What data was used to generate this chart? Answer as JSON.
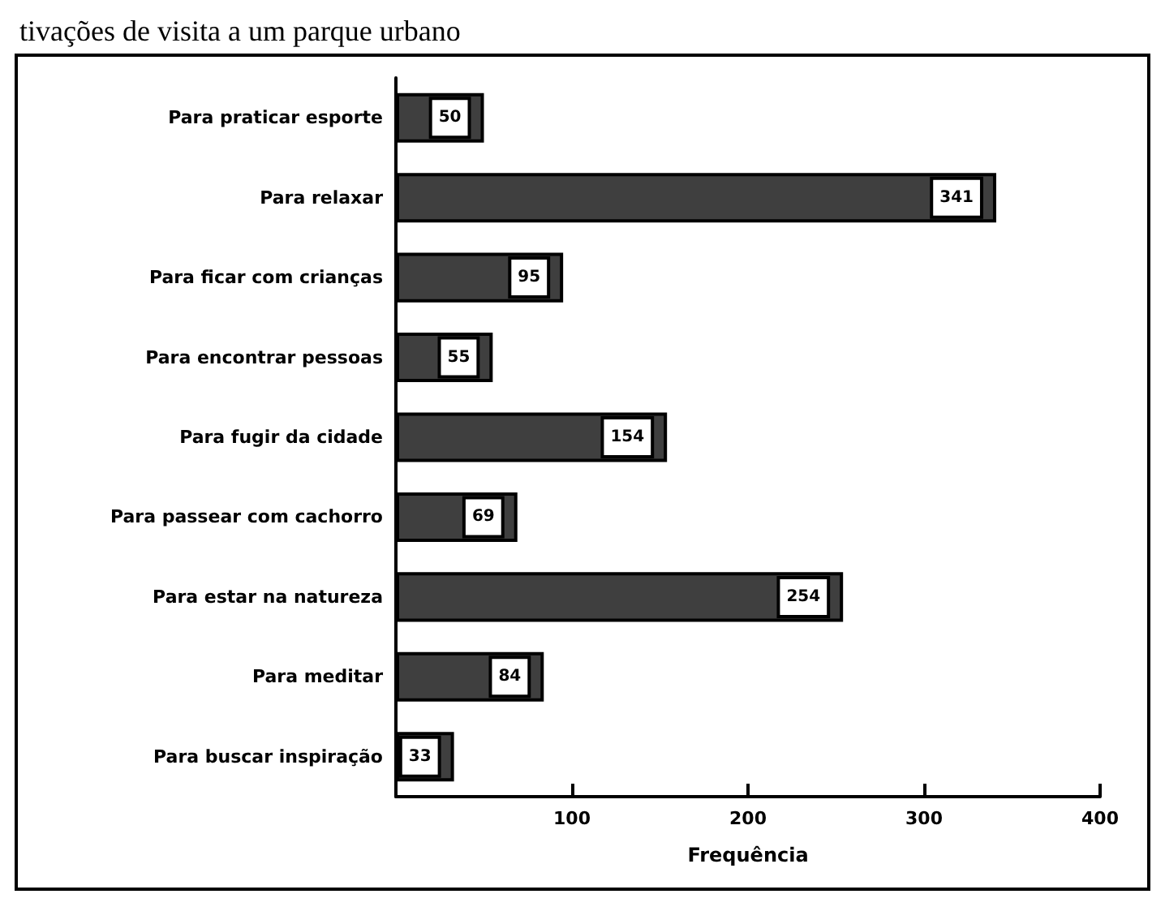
{
  "chart_data": {
    "type": "bar",
    "orientation": "horizontal",
    "title": "tivações de visita a um parque urbano",
    "xlabel": "Frequência",
    "categories": [
      "Para praticar esporte",
      "Para relaxar",
      "Para ficar com crianças",
      "Para encontrar pessoas",
      "Para fugir da cidade",
      "Para passear com cachorro",
      "Para estar na natureza",
      "Para meditar",
      "Para buscar inspiração"
    ],
    "values": [
      50,
      341,
      95,
      55,
      154,
      69,
      254,
      84,
      33
    ],
    "color": "#3f3f3f",
    "data_labels": true,
    "grid": false,
    "xlim": [
      0,
      400
    ],
    "xticks": [
      {
        "value": 0,
        "label": null
      },
      100,
      200,
      300,
      400
    ]
  }
}
